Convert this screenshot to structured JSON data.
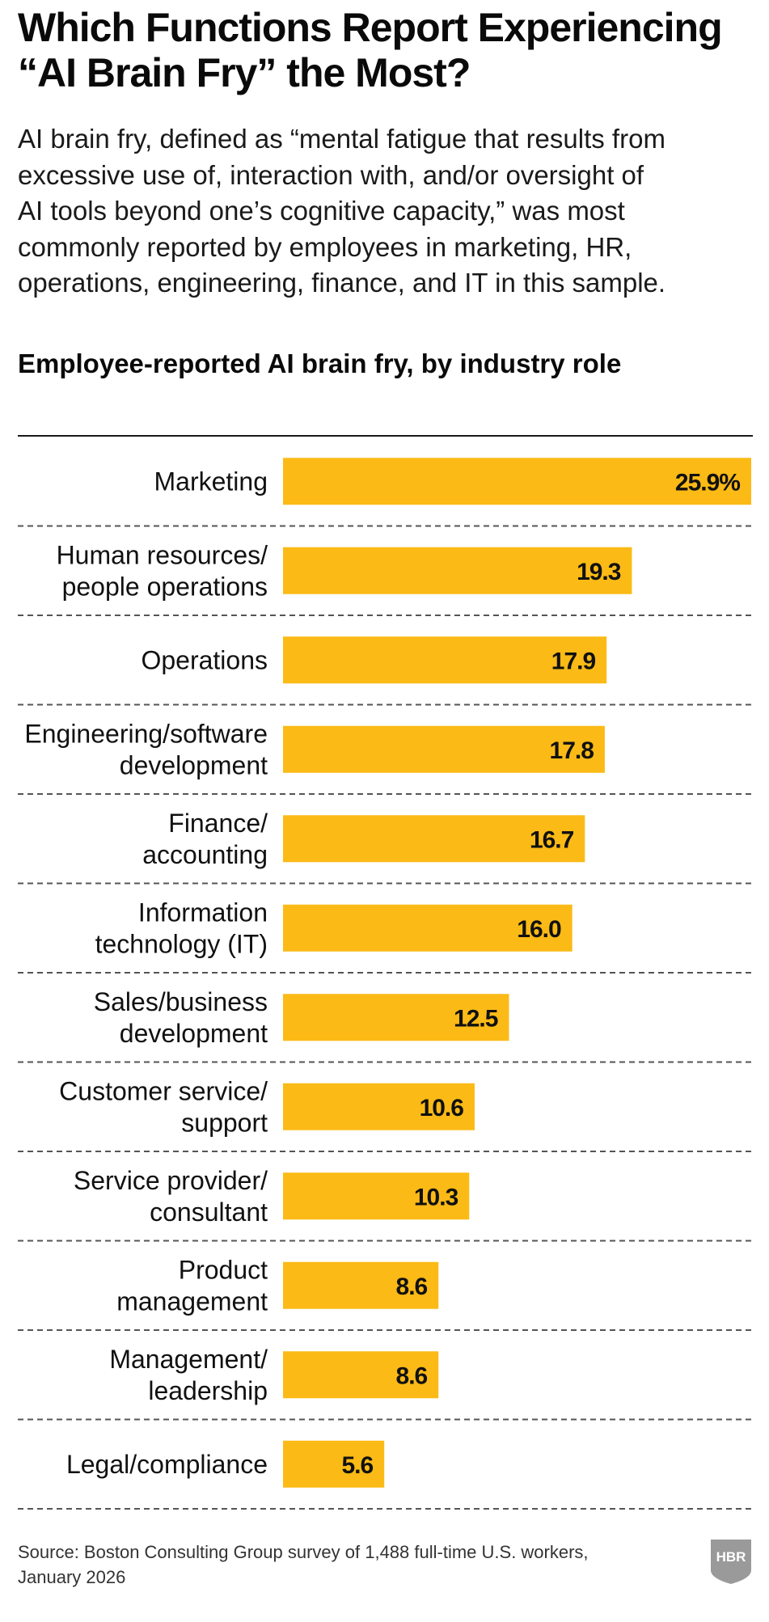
{
  "title_lines": [
    "Which Functions Report Experiencing",
    "“AI Brain Fry” the Most?"
  ],
  "subtitle_lines": [
    "AI brain fry, defined as “mental fatigue that results from",
    "excessive use of, interaction with, and/or oversight of",
    "AI tools beyond one’s cognitive capacity,” was most",
    "commonly reported by employees in marketing, HR,",
    "operations, engineering, finance, and IT in this sample."
  ],
  "source_lines": [
    "Source: Boston Consulting Group survey of 1,488 full-time U.S. workers,",
    "January 2026"
  ],
  "logo_text": "HBR",
  "chart_data": {
    "type": "bar",
    "orientation": "horizontal",
    "title": "Employee-reported AI brain fry, by industry role",
    "categories": [
      [
        "Marketing"
      ],
      [
        "Human resources/",
        "people operations"
      ],
      [
        "Operations"
      ],
      [
        "Engineering/software",
        "development"
      ],
      [
        "Finance/",
        "accounting"
      ],
      [
        "Information",
        "technology (IT)"
      ],
      [
        "Sales/business",
        "development"
      ],
      [
        "Customer service/",
        "support"
      ],
      [
        "Service provider/",
        "consultant"
      ],
      [
        "Product",
        "management"
      ],
      [
        "Management/",
        "leadership"
      ],
      [
        "Legal/compliance"
      ]
    ],
    "values": [
      25.9,
      19.3,
      17.9,
      17.8,
      16.7,
      16.0,
      12.5,
      10.6,
      10.3,
      8.6,
      8.6,
      5.6
    ],
    "value_labels": [
      "25.9%",
      "19.3",
      "17.9",
      "17.8",
      "16.7",
      "16.0",
      "12.5",
      "10.6",
      "10.3",
      "8.6",
      "8.6",
      "5.6"
    ],
    "unit": "%",
    "xlim": [
      0,
      25.9
    ],
    "grid": false,
    "legend": "none",
    "colors": {
      "bar": "#FBBA16",
      "text": "#111111",
      "divider": "#555555"
    }
  }
}
